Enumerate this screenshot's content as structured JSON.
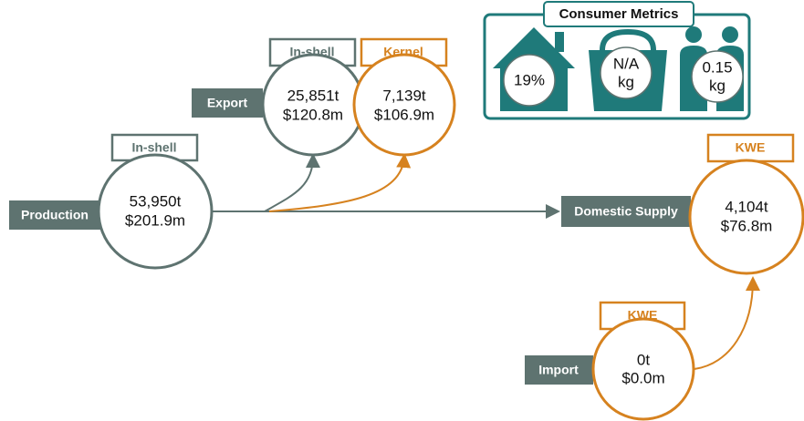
{
  "production": {
    "label": "Production",
    "tag": "In-shell",
    "amount": "53,950t",
    "value": "$201.9m"
  },
  "export": {
    "label": "Export",
    "inshell": {
      "tag": "In-shell",
      "amount": "25,851t",
      "value": "$120.8m"
    },
    "kernel": {
      "tag": "Kernel",
      "amount": "7,139t",
      "value": "$106.9m"
    }
  },
  "domestic_supply": {
    "label": "Domestic Supply",
    "tag": "KWE",
    "amount": "4,104t",
    "value": "$76.8m"
  },
  "import": {
    "label": "Import",
    "tag": "KWE",
    "amount": "0t",
    "value": "$0.0m"
  },
  "consumer_metrics": {
    "title": "Consumer Metrics",
    "items": [
      {
        "value": "19%"
      },
      {
        "value": "N/A",
        "unit": "kg"
      },
      {
        "value": "0.15",
        "unit": "kg"
      }
    ]
  }
}
